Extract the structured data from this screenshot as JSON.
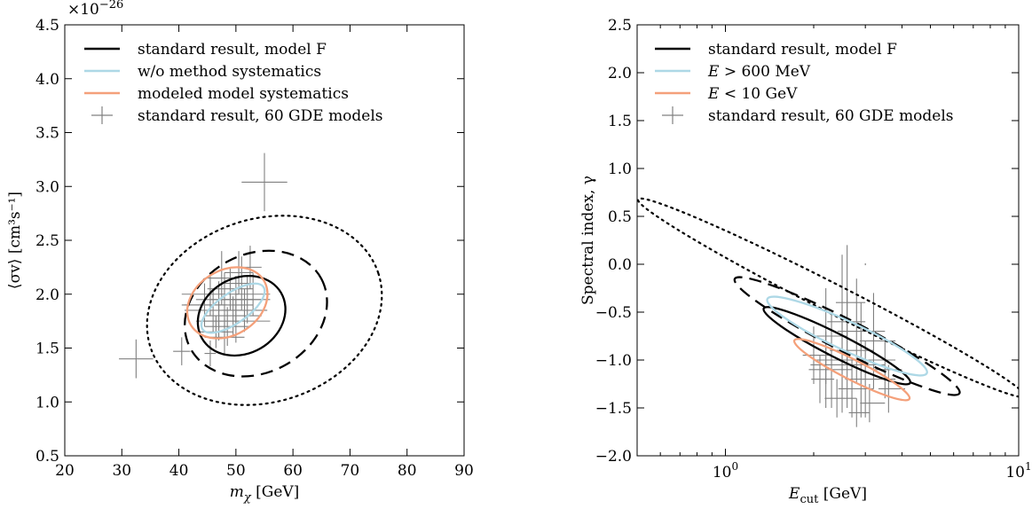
{
  "chart_data": [
    {
      "type": "scatter",
      "offset_label": "×10",
      "offset_exp": "−26",
      "xlabel_main": "m",
      "xlabel_sub": "χ",
      "xlabel_unit": " [GeV]",
      "ylabel": "⟨σv⟩ [cm³s⁻¹]",
      "xlim": [
        20,
        90
      ],
      "ylim": [
        0.5,
        4.5
      ],
      "xticks": [
        20,
        30,
        40,
        50,
        60,
        70,
        80,
        90
      ],
      "xtick_labels": [
        "20",
        "30",
        "40",
        "50",
        "60",
        "70",
        "80",
        "90"
      ],
      "yticks": [
        0.5,
        1.0,
        1.5,
        2.0,
        2.5,
        3.0,
        3.5,
        4.0,
        4.5
      ],
      "ytick_labels": [
        "0.5",
        "1.0",
        "1.5",
        "2.0",
        "2.5",
        "3.0",
        "3.5",
        "4.0",
        "4.5"
      ],
      "legend": {
        "placement": "top-left",
        "entries": [
          {
            "label": "standard result, model F",
            "color": "#000000",
            "style": "line"
          },
          {
            "label": "w/o method systematics",
            "color": "#add8e6",
            "style": "line"
          },
          {
            "label": "modeled model systematics",
            "color": "#f4a07a",
            "style": "line"
          },
          {
            "label": "standard result, 60 GDE models",
            "color": "#808080",
            "style": "errorbar"
          }
        ]
      },
      "contours": [
        {
          "name": "standard result, model F",
          "style": "dotted",
          "color": "#000000",
          "cx": 55,
          "cy": 1.85,
          "rx": 21,
          "ry": 0.85,
          "rot": 18
        },
        {
          "name": "standard result, model F",
          "style": "dashed",
          "color": "#000000",
          "cx": 53.5,
          "cy": 1.82,
          "rx": 13,
          "ry": 0.55,
          "rot": 28
        },
        {
          "name": "standard result, model F",
          "style": "solid",
          "color": "#000000",
          "cx": 51,
          "cy": 1.8,
          "rx": 8,
          "ry": 0.35,
          "rot": 30
        },
        {
          "name": "modeled model systematics",
          "style": "solid",
          "color": "#f4a07a",
          "cx": 48.5,
          "cy": 1.92,
          "rx": 7.5,
          "ry": 0.3,
          "rot": 32
        },
        {
          "name": "w/o method systematics",
          "style": "solid",
          "color": "#add8e6",
          "cx": 49.5,
          "cy": 1.87,
          "rx": 6.5,
          "ry": 0.14,
          "rot": 35
        }
      ],
      "points": [
        {
          "x": 55.0,
          "y": 3.04,
          "xerr": 4.0,
          "yerr": 0.27
        },
        {
          "x": 32.5,
          "y": 1.4,
          "xerr": 3.0,
          "yerr": 0.18
        },
        {
          "x": 40.5,
          "y": 1.47,
          "xerr": 1.5,
          "yerr": 0.13
        },
        {
          "x": 45.5,
          "y": 1.45,
          "xerr": 1.0,
          "yerr": 0.12
        },
        {
          "x": 46.0,
          "y": 1.85,
          "xerr": 5.0,
          "yerr": 0.2
        },
        {
          "x": 47.0,
          "y": 1.9,
          "xerr": 6.0,
          "yerr": 0.22
        },
        {
          "x": 48.0,
          "y": 1.95,
          "xerr": 5.0,
          "yerr": 0.25
        },
        {
          "x": 49.0,
          "y": 2.05,
          "xerr": 4.0,
          "yerr": 0.2
        },
        {
          "x": 50.0,
          "y": 1.75,
          "xerr": 6.0,
          "yerr": 0.2
        },
        {
          "x": 51.0,
          "y": 2.1,
          "xerr": 3.0,
          "yerr": 0.25
        },
        {
          "x": 52.0,
          "y": 1.95,
          "xerr": 4.0,
          "yerr": 0.22
        },
        {
          "x": 53.0,
          "y": 2.0,
          "xerr": 3.0,
          "yerr": 0.2
        },
        {
          "x": 48.5,
          "y": 1.7,
          "xerr": 4.0,
          "yerr": 0.18
        },
        {
          "x": 47.5,
          "y": 2.15,
          "xerr": 3.0,
          "yerr": 0.25
        },
        {
          "x": 50.5,
          "y": 2.2,
          "xerr": 2.5,
          "yerr": 0.2
        },
        {
          "x": 49.5,
          "y": 1.8,
          "xerr": 5.0,
          "yerr": 0.18
        },
        {
          "x": 46.5,
          "y": 1.65,
          "xerr": 3.0,
          "yerr": 0.15
        },
        {
          "x": 51.5,
          "y": 1.85,
          "xerr": 4.0,
          "yerr": 0.2
        },
        {
          "x": 45.5,
          "y": 2.0,
          "xerr": 5.0,
          "yerr": 0.2
        },
        {
          "x": 44.5,
          "y": 1.9,
          "xerr": 4.0,
          "yerr": 0.2
        },
        {
          "x": 52.5,
          "y": 2.25,
          "xerr": 2.0,
          "yerr": 0.2
        },
        {
          "x": 48.0,
          "y": 1.6,
          "xerr": 3.5,
          "yerr": 0.17
        },
        {
          "x": 50.0,
          "y": 1.95,
          "xerr": 4.5,
          "yerr": 0.22
        },
        {
          "x": 47.0,
          "y": 1.75,
          "xerr": 4.0,
          "yerr": 0.18
        }
      ]
    },
    {
      "type": "scatter",
      "xlabel_main": "E",
      "xlabel_sub": "cut",
      "xlabel_unit": " [GeV]",
      "ylabel": "Spectral index, γ",
      "xscale": "log",
      "xlim": [
        0.5,
        10
      ],
      "ylim": [
        -2.0,
        2.5
      ],
      "xticks": [
        1,
        10
      ],
      "xtick_base": "10",
      "xtick_exps": [
        "0",
        "1"
      ],
      "xminor_ticks": [
        0.5,
        0.6,
        0.7,
        0.8,
        0.9,
        2,
        3,
        4,
        5,
        6,
        7,
        8,
        9
      ],
      "yticks": [
        -2.0,
        -1.5,
        -1.0,
        -0.5,
        0.0,
        0.5,
        1.0,
        1.5,
        2.0,
        2.5
      ],
      "ytick_labels": [
        "−2.0",
        "−1.5",
        "−1.0",
        "−0.5",
        "0.0",
        "0.5",
        "1.0",
        "1.5",
        "2.0",
        "2.5"
      ],
      "legend": {
        "placement": "top-right",
        "entries": [
          {
            "label": "standard result, model F",
            "color": "#000000",
            "style": "line"
          },
          {
            "label": "E > 600 MeV",
            "color": "#add8e6",
            "style": "line",
            "math_var": "E",
            "rest": " > 600 MeV"
          },
          {
            "label": "E < 10 GeV",
            "color": "#f4a07a",
            "style": "line",
            "math_var": "E",
            "rest": " < 10 GeV"
          },
          {
            "label": "standard result, 60 GDE models",
            "color": "#808080",
            "style": "errorbar"
          }
        ]
      },
      "contours": [
        {
          "name": "standard result, model F",
          "style": "dotted",
          "color": "#000000",
          "cx": 2.3,
          "cy": -0.35,
          "rx": 0.74,
          "ry": 0.05,
          "rot": -27
        },
        {
          "name": "standard result, model F",
          "style": "dashed",
          "color": "#000000",
          "cx": 2.6,
          "cy": -0.75,
          "rx": 0.43,
          "ry": 0.055,
          "rot": -27
        },
        {
          "name": "standard result, model F",
          "style": "solid",
          "color": "#000000",
          "cx": 2.4,
          "cy": -0.85,
          "rx": 0.28,
          "ry": 0.04,
          "rot": -27
        },
        {
          "name": "E > 600 MeV",
          "style": "solid",
          "color": "#add8e6",
          "cx": 2.6,
          "cy": -0.75,
          "rx": 0.3,
          "ry": 0.05,
          "rot": -25
        },
        {
          "name": "E < 10 GeV",
          "style": "solid",
          "color": "#f4a07a",
          "cx": 2.7,
          "cy": -1.1,
          "rx": 0.22,
          "ry": 0.035,
          "rot": -27
        }
      ],
      "points": [
        {
          "x": 2.6,
          "y": -0.9,
          "xerr": 0.6,
          "yerr": 0.6
        },
        {
          "x": 2.3,
          "y": -1.0,
          "xerr": 0.5,
          "yerr": 0.5
        },
        {
          "x": 2.8,
          "y": -0.7,
          "xerr": 0.7,
          "yerr": 0.55
        },
        {
          "x": 2.2,
          "y": -1.1,
          "xerr": 0.5,
          "yerr": 0.4
        },
        {
          "x": 3.0,
          "y": -1.2,
          "xerr": 0.8,
          "yerr": 0.4
        },
        {
          "x": 2.5,
          "y": -0.6,
          "xerr": 0.5,
          "yerr": 0.7
        },
        {
          "x": 2.7,
          "y": -1.3,
          "xerr": 0.5,
          "yerr": 0.3
        },
        {
          "x": 3.2,
          "y": -0.8,
          "xerr": 0.6,
          "yerr": 0.5
        },
        {
          "x": 2.0,
          "y": -0.95,
          "xerr": 0.3,
          "yerr": 0.3
        },
        {
          "x": 2.4,
          "y": -1.4,
          "xerr": 0.4,
          "yerr": 0.2
        },
        {
          "x": 2.9,
          "y": -1.0,
          "xerr": 0.9,
          "yerr": 0.6
        },
        {
          "x": 3.5,
          "y": -1.1,
          "xerr": 0.5,
          "yerr": 0.3
        },
        {
          "x": 2.1,
          "y": -1.2,
          "xerr": 0.25,
          "yerr": 0.25
        },
        {
          "x": 3.1,
          "y": -1.45,
          "xerr": 0.4,
          "yerr": 0.2
        },
        {
          "x": 2.6,
          "y": -0.4,
          "xerr": 0.4,
          "yerr": 0.6
        },
        {
          "x": 2.5,
          "y": -1.05,
          "xerr": 1.0,
          "yerr": 0.5
        },
        {
          "x": 3.6,
          "y": -1.3,
          "xerr": 0.5,
          "yerr": 0.25
        },
        {
          "x": 2.2,
          "y": -0.75,
          "xerr": 0.4,
          "yerr": 0.5
        },
        {
          "x": 3.0,
          "y": 0.0,
          "xerr": 0.01,
          "yerr": 0.01
        },
        {
          "x": 2.8,
          "y": -1.55,
          "xerr": 0.3,
          "yerr": 0.15
        }
      ]
    }
  ]
}
